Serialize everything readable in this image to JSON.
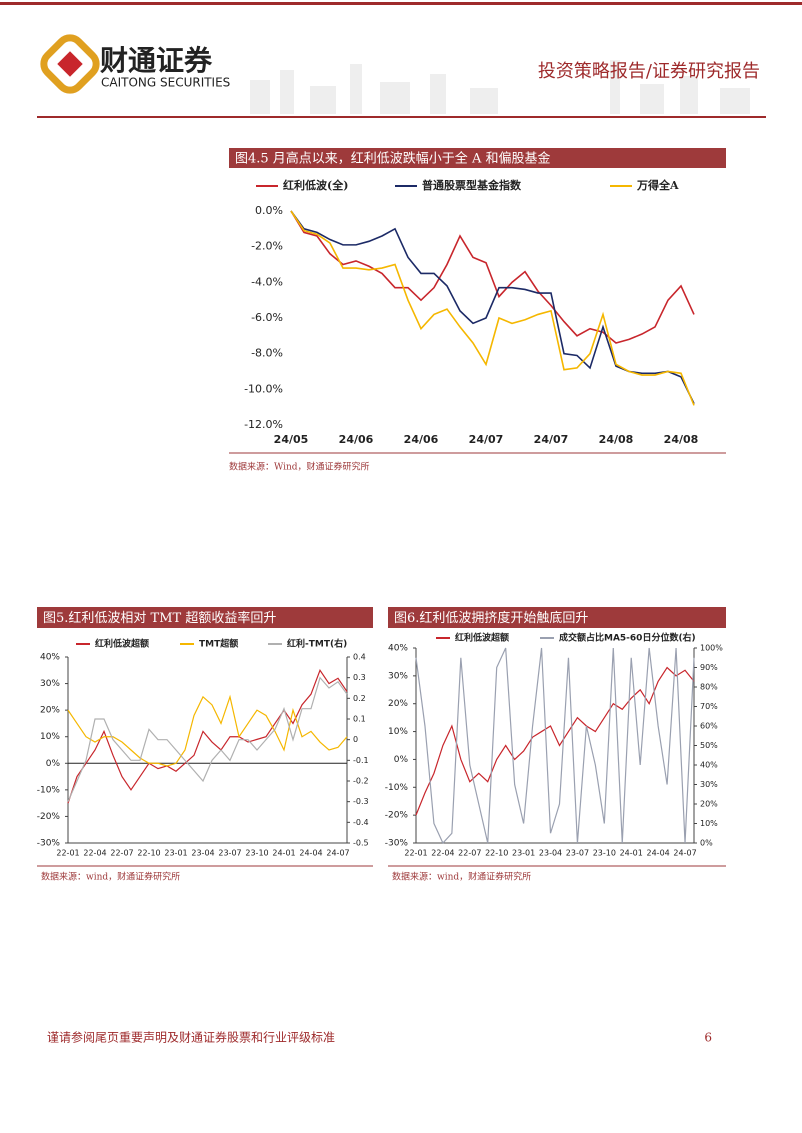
{
  "header": {
    "company": "财通证券",
    "company_en": "CAITONG SECURITIES",
    "report_type": "投资策略报告/证券研究报告"
  },
  "footer": {
    "disclaimer": "谨请参阅尾页重要声明及财通证券股票和行业评级标准",
    "page": "6"
  },
  "chart_data": [
    {
      "type": "line",
      "title": "图4.5 月高点以来，红利低波跌幅小于全 A 和偏股基金",
      "source": "数据来源：Wind，财通证券研究所",
      "x": [
        "24/05",
        null,
        null,
        null,
        null,
        "24/06",
        null,
        null,
        null,
        null,
        "24/06",
        null,
        null,
        null,
        null,
        "24/07",
        null,
        null,
        null,
        null,
        "24/07",
        null,
        null,
        null,
        null,
        "24/08",
        null,
        null,
        null,
        null,
        "24/08",
        null
      ],
      "ylim": [
        -12,
        0
      ],
      "yticks": [
        {
          "value": 0,
          "label": "0.0%"
        },
        {
          "value": -2,
          "label": "-2.0%"
        },
        {
          "value": -4,
          "label": "-4.0%"
        },
        {
          "value": -6,
          "label": "-6.0%"
        },
        {
          "value": -8,
          "label": "-8.0%"
        },
        {
          "value": -10,
          "label": "-10.0%"
        },
        {
          "value": -12,
          "label": "-12.0%"
        }
      ],
      "series": [
        {
          "name": "红利低波(全)",
          "color": "#c8262c",
          "values": [
            0,
            -1.2,
            -1.4,
            -2.4,
            -3.0,
            -2.8,
            -3.1,
            -3.5,
            -4.3,
            -4.3,
            -5.0,
            -4.3,
            -3.0,
            -1.4,
            -2.6,
            -2.9,
            -4.8,
            -4.0,
            -3.4,
            -4.5,
            -5.3,
            -6.2,
            -7.0,
            -6.6,
            -6.8,
            -7.4,
            -7.2,
            -6.9,
            -6.5,
            -5.0,
            -4.2,
            -5.8
          ]
        },
        {
          "name": "普通股票型基金指数",
          "color": "#1c2a66",
          "values": [
            0,
            -1.0,
            -1.2,
            -1.6,
            -1.9,
            -1.9,
            -1.7,
            -1.4,
            -1.0,
            -2.6,
            -3.5,
            -3.5,
            -4.2,
            -5.6,
            -6.3,
            -6.0,
            -4.3,
            -4.3,
            -4.4,
            -4.6,
            -4.6,
            -8.0,
            -8.1,
            -8.8,
            -6.5,
            -8.7,
            -9.0,
            -9.1,
            -9.1,
            -9.0,
            -9.3,
            -10.8
          ]
        },
        {
          "name": "万得全A",
          "color": "#f5b700",
          "values": [
            0,
            -1.1,
            -1.3,
            -1.8,
            -3.2,
            -3.2,
            -3.3,
            -3.2,
            -3.0,
            -5.0,
            -6.6,
            -5.8,
            -5.5,
            -6.5,
            -7.4,
            -8.6,
            -6.0,
            -6.3,
            -6.1,
            -5.8,
            -5.6,
            -8.9,
            -8.8,
            -8.0,
            -5.8,
            -8.6,
            -9.0,
            -9.2,
            -9.2,
            -9.0,
            -9.1,
            -10.9
          ]
        }
      ]
    },
    {
      "type": "line",
      "title": "图5.红利低波相对 TMT 超额收益率回升",
      "source": "数据来源：wind，财通证券研究所",
      "zero_line": true,
      "x": [
        "22-01",
        null,
        null,
        "22-04",
        null,
        null,
        "22-07",
        null,
        null,
        "22-10",
        null,
        null,
        "23-01",
        null,
        null,
        "23-04",
        null,
        null,
        "23-07",
        null,
        null,
        "23-10",
        null,
        null,
        "24-01",
        null,
        null,
        "24-04",
        null,
        null,
        "24-07",
        null
      ],
      "ylim": [
        -30,
        40
      ],
      "yticks": [
        {
          "value": 40,
          "label": "40%"
        },
        {
          "value": 30,
          "label": "30%"
        },
        {
          "value": 20,
          "label": "20%"
        },
        {
          "value": 10,
          "label": "10%"
        },
        {
          "value": 0,
          "label": "0%"
        },
        {
          "value": -10,
          "label": "-10%"
        },
        {
          "value": -20,
          "label": "-20%"
        },
        {
          "value": -30,
          "label": "-30%"
        }
      ],
      "y2lim": [
        -0.5,
        0.4
      ],
      "y2ticks": [
        0.4,
        0.3,
        0.2,
        0.1,
        0,
        -0.1,
        -0.2,
        -0.3,
        -0.4,
        -0.5
      ],
      "series": [
        {
          "name": "红利低波超额",
          "color": "#c8262c",
          "values": [
            -15,
            -5,
            0,
            5,
            12,
            3,
            -5,
            -10,
            -5,
            0,
            -2,
            -1,
            -3,
            0,
            3,
            12,
            8,
            5,
            10,
            10,
            8,
            9,
            10,
            15,
            20,
            15,
            22,
            26,
            35,
            30,
            32,
            27
          ]
        },
        {
          "name": "TMT超额",
          "color": "#f5b700",
          "values": [
            20,
            15,
            10,
            8,
            10,
            10,
            8,
            5,
            2,
            0,
            0,
            -1,
            0,
            5,
            18,
            25,
            22,
            15,
            25,
            10,
            15,
            20,
            18,
            12,
            5,
            20,
            10,
            12,
            8,
            5,
            6,
            10
          ]
        },
        {
          "name": "红利-TMT(右)",
          "color": "#b0b0b0",
          "axis": "y2",
          "values": [
            -0.3,
            -0.2,
            -0.1,
            0.1,
            0.1,
            0,
            -0.05,
            -0.1,
            -0.1,
            0.05,
            0,
            0,
            -0.05,
            -0.1,
            -0.15,
            -0.2,
            -0.1,
            -0.05,
            -0.1,
            0,
            0,
            -0.05,
            0,
            0.05,
            0.15,
            0,
            0.15,
            0.15,
            0.3,
            0.25,
            0.28,
            0.22
          ]
        }
      ]
    },
    {
      "type": "line",
      "title": "图6.红利低波拥挤度开始触底回升",
      "source": "数据来源：wind，财通证券研究所",
      "x": [
        "22-01",
        null,
        null,
        "22-04",
        null,
        null,
        "22-07",
        null,
        null,
        "22-10",
        null,
        null,
        "23-01",
        null,
        null,
        "23-04",
        null,
        null,
        "23-07",
        null,
        null,
        "23-10",
        null,
        null,
        "24-01",
        null,
        null,
        "24-04",
        null,
        null,
        "24-07",
        null
      ],
      "ylim": [
        -30,
        40
      ],
      "yticks": [
        {
          "value": 40,
          "label": "40%"
        },
        {
          "value": 30,
          "label": "30%"
        },
        {
          "value": 20,
          "label": "20%"
        },
        {
          "value": 10,
          "label": "10%"
        },
        {
          "value": 0,
          "label": "0%"
        },
        {
          "value": -10,
          "label": "-10%"
        },
        {
          "value": -20,
          "label": "-20%"
        },
        {
          "value": -30,
          "label": "-30%"
        }
      ],
      "y2lim": [
        0,
        100
      ],
      "y2ticks": [
        {
          "value": 100,
          "label": "100%"
        },
        {
          "value": 90,
          "label": "90%"
        },
        {
          "value": 80,
          "label": "80%"
        },
        {
          "value": 70,
          "label": "70%"
        },
        {
          "value": 60,
          "label": "60%"
        },
        {
          "value": 50,
          "label": "50%"
        },
        {
          "value": 40,
          "label": "40%"
        },
        {
          "value": 30,
          "label": "30%"
        },
        {
          "value": 20,
          "label": "20%"
        },
        {
          "value": 10,
          "label": "10%"
        },
        {
          "value": 0,
          "label": "0%"
        }
      ],
      "series": [
        {
          "name": "红利低波超额",
          "color": "#c8262c",
          "values": [
            -20,
            -12,
            -5,
            5,
            12,
            0,
            -8,
            -5,
            -8,
            0,
            5,
            0,
            3,
            8,
            10,
            12,
            5,
            10,
            15,
            12,
            10,
            15,
            20,
            18,
            22,
            25,
            20,
            28,
            33,
            30,
            32,
            28
          ]
        },
        {
          "name": "成交额占比MA5-60日分位数(右)",
          "color": "#9aa0b0",
          "axis": "y2",
          "values": [
            95,
            60,
            10,
            0,
            5,
            95,
            40,
            20,
            0,
            90,
            100,
            30,
            10,
            60,
            100,
            5,
            20,
            95,
            0,
            60,
            40,
            10,
            100,
            0,
            95,
            40,
            100,
            60,
            30,
            100,
            0,
            95
          ]
        }
      ]
    }
  ]
}
